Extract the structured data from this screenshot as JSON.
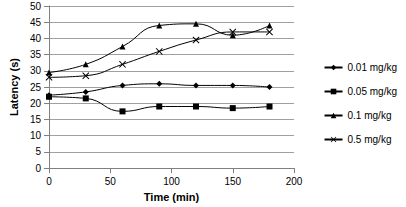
{
  "chart_data": {
    "type": "line",
    "x_label": "Time (min)",
    "y_label": "Latency (s)",
    "xlim": [
      0,
      200
    ],
    "xticks": [
      0,
      50,
      100,
      150,
      200
    ],
    "ylim": [
      0,
      50
    ],
    "yticks": [
      0,
      5,
      10,
      15,
      20,
      25,
      30,
      35,
      40,
      45,
      50
    ],
    "grid": true,
    "legend": "right",
    "series": [
      {
        "name": "0.01 mg/kg",
        "color": "#000000",
        "marker": "diamond",
        "line_style": "smooth",
        "x": [
          0,
          30,
          60,
          90,
          120,
          150,
          180
        ],
        "values": [
          22.5,
          23.5,
          25.5,
          26,
          25.5,
          25.5,
          25
        ]
      },
      {
        "name": "0.05 mg/kg",
        "color": "#000000",
        "marker": "square",
        "line_style": "smooth",
        "x": [
          0,
          30,
          60,
          90,
          120,
          150,
          180
        ],
        "values": [
          22,
          21.5,
          17.5,
          19,
          19,
          18.5,
          19
        ]
      },
      {
        "name": "0.1 mg/kg",
        "color": "#000000",
        "marker": "triangle",
        "line_style": "smooth",
        "x": [
          0,
          30,
          60,
          90,
          120,
          150,
          180
        ],
        "values": [
          29.5,
          32,
          37.5,
          44,
          44.5,
          41,
          44
        ]
      },
      {
        "name": "0.5 mg/kg",
        "color": "#000000",
        "marker": "x",
        "line_style": "smooth",
        "x": [
          0,
          30,
          60,
          90,
          120,
          150,
          180
        ],
        "values": [
          28,
          28.5,
          32,
          36,
          39.5,
          42,
          42
        ]
      }
    ]
  }
}
